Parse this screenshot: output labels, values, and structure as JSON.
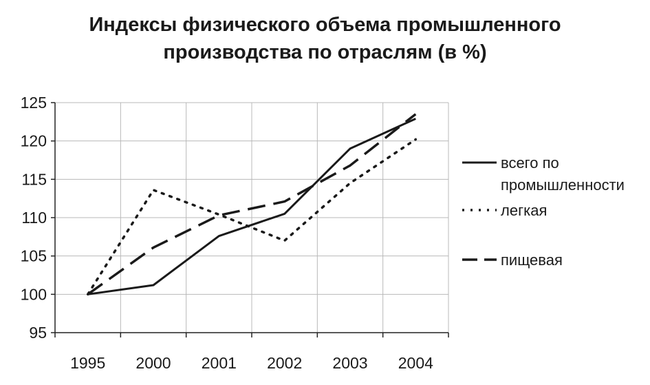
{
  "chart_data": {
    "type": "line",
    "title_lines": [
      "Индексы физического объема промышленного",
      "производства по отраслям (в %)"
    ],
    "categories": [
      "1995",
      "2000",
      "2001",
      "2002",
      "2003",
      "2004"
    ],
    "ylim": [
      95,
      125
    ],
    "yticks": [
      95,
      100,
      105,
      110,
      115,
      120,
      125
    ],
    "grid": true,
    "legend_position": "right",
    "series": [
      {
        "name_lines": [
          "всего по",
          "промышленности"
        ],
        "style": "solid",
        "values": [
          100,
          101.2,
          107.6,
          110.5,
          119,
          122.9
        ]
      },
      {
        "name_lines": [
          "легкая"
        ],
        "style": "dotted",
        "values": [
          100,
          113.6,
          110.4,
          107,
          114.5,
          120.2
        ]
      },
      {
        "name_lines": [
          "пищевая"
        ],
        "style": "dashed",
        "values": [
          100,
          106.1,
          110.3,
          112.1,
          116.8,
          123.5
        ]
      }
    ]
  }
}
